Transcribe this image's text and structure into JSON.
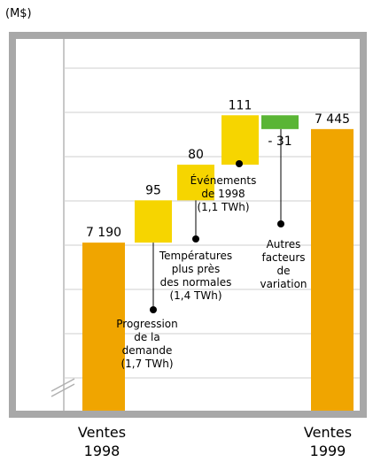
{
  "unit_label": "(M$)",
  "chart_data": {
    "type": "bar",
    "subtype": "waterfall",
    "title": "",
    "xlabel": "",
    "ylabel": "(M$)",
    "ylim": [
      6900,
      7560
    ],
    "axis_break": true,
    "grid": "horizontal",
    "categories": [
      "Ventes 1998",
      "Progression de la demande",
      "Températures plus près des normales",
      "Événements de 1998",
      "Autres facteurs de variation",
      "Ventes 1999"
    ],
    "steps": [
      {
        "kind": "total",
        "value": 7190,
        "label": "7 190",
        "category": [
          "Ventes",
          "1998"
        ],
        "color": "#f0a500"
      },
      {
        "kind": "delta",
        "value": 95,
        "label": "95",
        "annotation": [
          "Progression",
          "de la",
          "demande",
          "(1,7 TWh)"
        ],
        "color": "#f6d500"
      },
      {
        "kind": "delta",
        "value": 80,
        "label": "80",
        "annotation": [
          "Températures",
          "plus près",
          "des normales",
          "(1,4 TWh)"
        ],
        "color": "#f6d500"
      },
      {
        "kind": "delta",
        "value": 111,
        "label": "111",
        "annotation": [
          "Événements",
          "de 1998",
          "(1,1 TWh)"
        ],
        "color": "#f6d500"
      },
      {
        "kind": "delta",
        "value": -31,
        "label": "- 31",
        "annotation": [
          "Autres",
          "facteurs",
          "de",
          "variation"
        ],
        "color": "#5ab535"
      },
      {
        "kind": "total",
        "value": 7445,
        "label": "7 445",
        "category": [
          "Ventes",
          "1999"
        ],
        "color": "#f0a500"
      }
    ]
  }
}
